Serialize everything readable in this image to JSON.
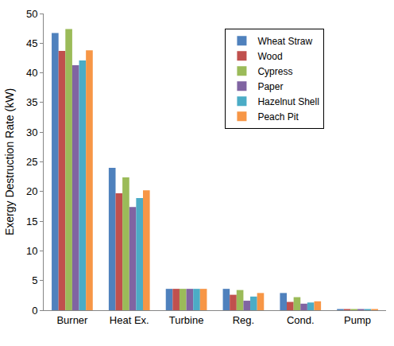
{
  "chart_data": {
    "type": "bar",
    "y_label": "Exergy Destruction Rate (kW)",
    "categories": [
      "Burner",
      "Heat Ex.",
      "Turbine",
      "Reg.",
      "Cond.",
      "Pump"
    ],
    "series": [
      {
        "name": "Wheat Straw",
        "color": "#4f81bd",
        "values": [
          46.7,
          24.0,
          3.6,
          3.6,
          2.9,
          0.2
        ]
      },
      {
        "name": "Wood",
        "color": "#c0504d",
        "values": [
          43.7,
          19.7,
          3.6,
          2.6,
          1.4,
          0.2
        ]
      },
      {
        "name": "Cypress",
        "color": "#9bbb59",
        "values": [
          47.4,
          22.4,
          3.6,
          3.4,
          2.2,
          0.2
        ]
      },
      {
        "name": "Paper",
        "color": "#8064a2",
        "values": [
          41.3,
          17.4,
          3.6,
          1.6,
          1.1,
          0.2
        ]
      },
      {
        "name": "Hazelnut Shell",
        "color": "#4bacc6",
        "values": [
          42.1,
          18.9,
          3.6,
          2.3,
          1.3,
          0.2
        ]
      },
      {
        "name": "Peach Pit",
        "color": "#f79646",
        "values": [
          43.8,
          20.2,
          3.6,
          2.9,
          1.5,
          0.2
        ]
      }
    ],
    "ylim": [
      0,
      50
    ],
    "yticks": [
      0,
      5,
      10,
      15,
      20,
      25,
      30,
      35,
      40,
      45,
      50
    ],
    "grid": false,
    "legend": "upper right"
  }
}
